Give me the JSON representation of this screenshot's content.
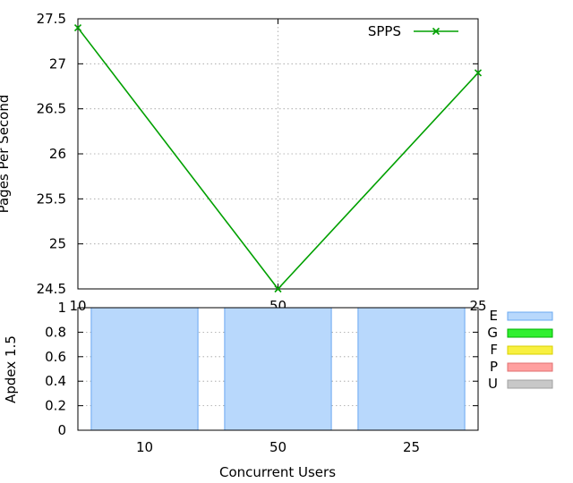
{
  "chart_data": [
    {
      "type": "line",
      "title": "",
      "xlabel": "",
      "ylabel": "Pages Per Second",
      "categories": [
        "10",
        "50",
        "25"
      ],
      "series": [
        {
          "name": "SPPS",
          "values": [
            27.4,
            24.5,
            26.9
          ],
          "color": "#00a000",
          "marker": "x"
        }
      ],
      "ylim": [
        24.5,
        27.5
      ],
      "yticks": [
        "24.5",
        "25",
        "25.5",
        "26",
        "26.5",
        "27",
        "27.5"
      ],
      "grid": true,
      "legend": "top-right"
    },
    {
      "type": "bar",
      "xlabel": "Concurrent Users",
      "ylabel": "Apdex 1.5",
      "categories": [
        "10",
        "50",
        "25"
      ],
      "values": [
        1,
        1,
        1
      ],
      "ylim": [
        0,
        1
      ],
      "yticks": [
        "0",
        "0.2",
        "0.4",
        "0.6",
        "0.8",
        "1"
      ],
      "bar_color": "#b8d8fc",
      "bar_edge": "#6aa8f0",
      "legend": [
        {
          "label": "E",
          "color": "#b8d8fc",
          "edge": "#6aa8f0"
        },
        {
          "label": "G",
          "color": "#30f030",
          "edge": "#00b000"
        },
        {
          "label": "F",
          "color": "#f8f040",
          "edge": "#d8d000"
        },
        {
          "label": "P",
          "color": "#ffa0a0",
          "edge": "#e07070"
        },
        {
          "label": "U",
          "color": "#c8c8c8",
          "edge": "#a0a0a0"
        }
      ]
    }
  ]
}
